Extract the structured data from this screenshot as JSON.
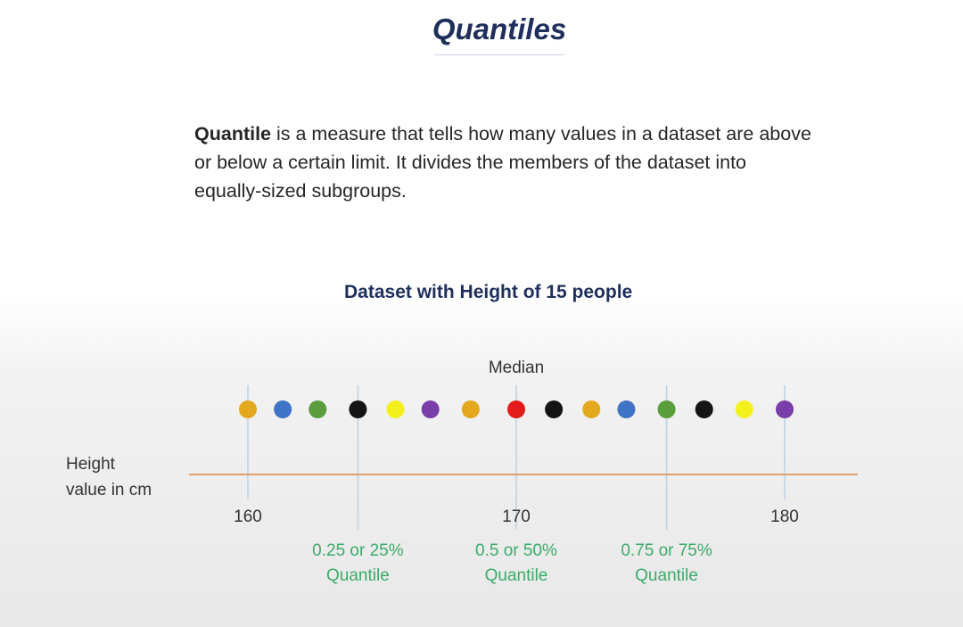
{
  "title": "Quantiles",
  "description": {
    "term": "Quantile",
    "rest": " is a measure that tells how many values in a dataset are above or below a certain limit. It divides the members of the dataset into equally-sized subgroups."
  },
  "chart_data": {
    "type": "scatter",
    "title": "Dataset with Height of 15 people",
    "ylabel_lines": [
      "Height",
      "value in cm"
    ],
    "xlim": [
      160,
      180
    ],
    "ticks": [
      {
        "value": 160,
        "label": "160"
      },
      {
        "value": 170,
        "label": "170"
      },
      {
        "value": 180,
        "label": "180"
      }
    ],
    "points": [
      {
        "x": 160.0,
        "color": "#e3a81e"
      },
      {
        "x": 161.3,
        "color": "#3e73c6"
      },
      {
        "x": 162.6,
        "color": "#5a9d3c"
      },
      {
        "x": 164.1,
        "color": "#141414"
      },
      {
        "x": 165.5,
        "color": "#f3f01c"
      },
      {
        "x": 166.8,
        "color": "#7a3ea8"
      },
      {
        "x": 168.3,
        "color": "#e3a81e"
      },
      {
        "x": 170.0,
        "color": "#e31b1b"
      },
      {
        "x": 171.4,
        "color": "#141414"
      },
      {
        "x": 172.8,
        "color": "#e3a81e"
      },
      {
        "x": 174.1,
        "color": "#3e73c6"
      },
      {
        "x": 175.6,
        "color": "#5a9d3c"
      },
      {
        "x": 177.0,
        "color": "#141414"
      },
      {
        "x": 178.5,
        "color": "#f3f01c"
      },
      {
        "x": 180.0,
        "color": "#7a3ea8"
      }
    ],
    "markers": [
      {
        "x": 160.0,
        "label_lines": []
      },
      {
        "x": 164.1,
        "label_lines": [
          "0.25 or 25%",
          "Quantile"
        ]
      },
      {
        "x": 170.0,
        "label_lines": [
          "0.5 or 50%",
          "Quantile"
        ],
        "top_label": "Median"
      },
      {
        "x": 175.6,
        "label_lines": [
          "0.75 or 75%",
          "Quantile"
        ]
      },
      {
        "x": 180.0,
        "label_lines": []
      }
    ],
    "colors": {
      "axis": "#e0a070",
      "guide": "#bcd1e6",
      "quantile_label": "#3bab6b",
      "text": "#333333"
    }
  }
}
